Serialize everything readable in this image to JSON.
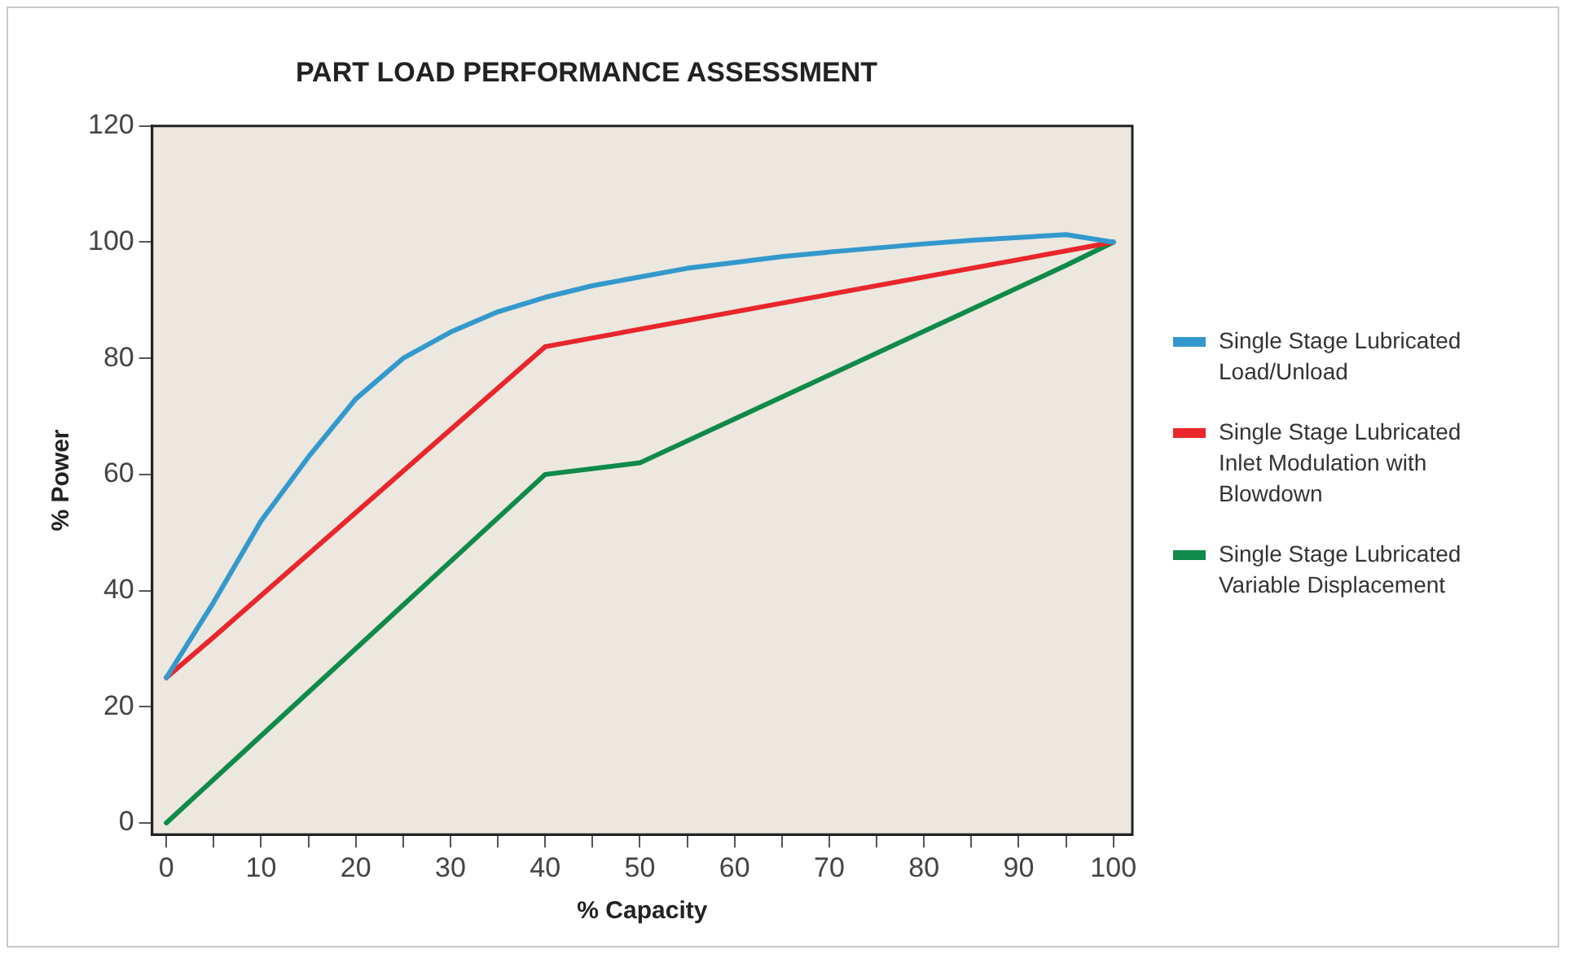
{
  "chart_data": {
    "type": "line",
    "title": "PART LOAD PERFORMANCE ASSESSMENT",
    "xlabel": "% Capacity",
    "ylabel": "% Power",
    "xlim": [
      -1.5,
      102
    ],
    "ylim": [
      -2,
      120
    ],
    "xticks": [
      0,
      {
        "value": 5,
        "label": null
      },
      10,
      {
        "value": 15,
        "label": null
      },
      20,
      {
        "value": 25,
        "label": null
      },
      30,
      {
        "value": 35,
        "label": null
      },
      40,
      {
        "value": 45,
        "label": null
      },
      50,
      {
        "value": 55,
        "label": null
      },
      60,
      {
        "value": 65,
        "label": null
      },
      70,
      {
        "value": 75,
        "label": null
      },
      80,
      {
        "value": 85,
        "label": null
      },
      90,
      {
        "value": 95,
        "label": null
      },
      100
    ],
    "yticks": [
      0,
      20,
      40,
      60,
      80,
      100,
      120
    ],
    "grid": false,
    "legend": "right",
    "marker": "none",
    "line_style": "solid",
    "series": [
      {
        "name": "Single Stage Lubricated Load/Unload",
        "color": "#3399cc",
        "x": [
          0,
          5,
          10,
          15,
          20,
          25,
          30,
          35,
          40,
          45,
          50,
          55,
          60,
          65,
          70,
          75,
          80,
          85,
          90,
          95,
          100
        ],
        "values": [
          25,
          38,
          52,
          63,
          73,
          80,
          84.5,
          88,
          90.5,
          92.5,
          94,
          95.5,
          96.5,
          97.5,
          98.3,
          99,
          99.7,
          100.3,
          100.8,
          101.3,
          100
        ]
      },
      {
        "name": "Single Stage Lubricated Inlet Modulation with Blowdown",
        "color": "#e8262b",
        "x": [
          0,
          5,
          40,
          100
        ],
        "values": [
          25,
          32,
          82,
          100
        ]
      },
      {
        "name": "Single Stage Lubricated Variable Displacement",
        "color": "#0f8a4a",
        "x": [
          0,
          40,
          50,
          95,
          100
        ],
        "values": [
          0,
          60,
          62,
          96,
          100
        ]
      }
    ]
  }
}
